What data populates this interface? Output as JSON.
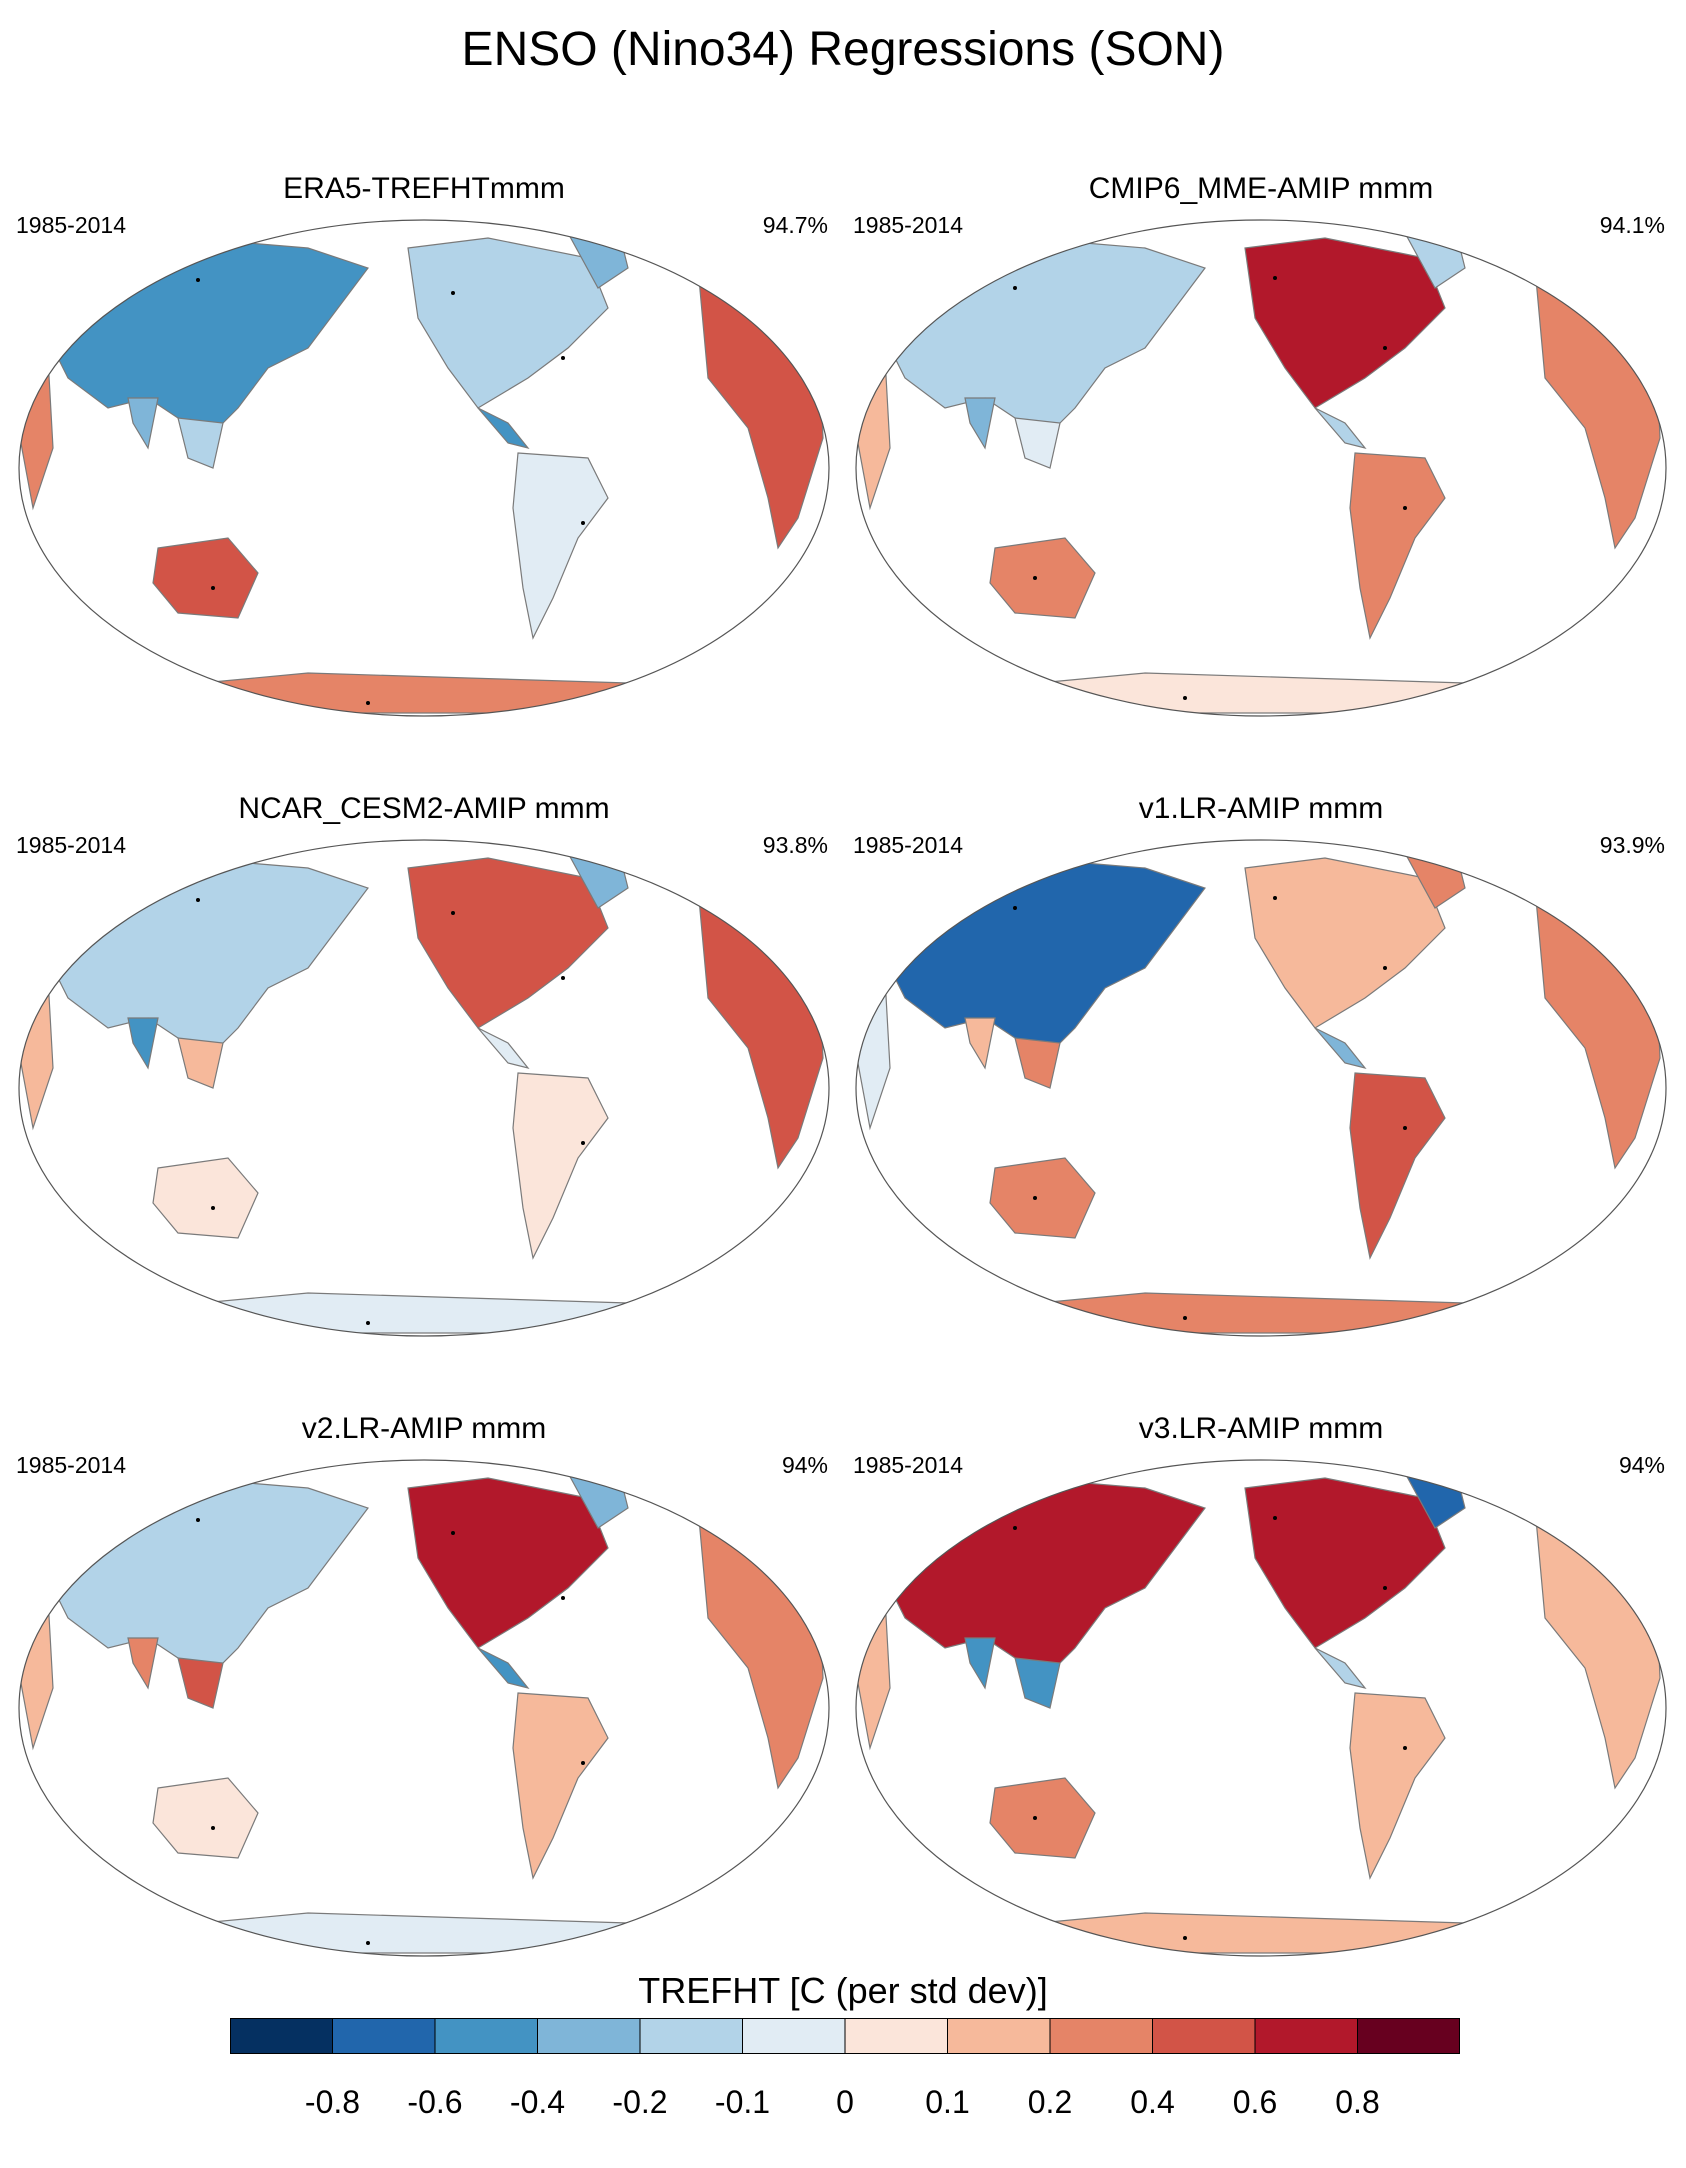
{
  "title": "ENSO (Nino34) Regressions (SON)",
  "panels": [
    {
      "title": "ERA5-TREFHTmmm",
      "period": "1985-2014",
      "pct": "94.7%"
    },
    {
      "title": "CMIP6_MME-AMIP  mmm",
      "period": "1985-2014",
      "pct": "94.1%"
    },
    {
      "title": "NCAR_CESM2-AMIP  mmm",
      "period": "1985-2014",
      "pct": "93.8%"
    },
    {
      "title": "v1.LR-AMIP  mmm",
      "period": "1985-2014",
      "pct": "93.9%"
    },
    {
      "title": "v2.LR-AMIP  mmm",
      "period": "1985-2014",
      "pct": "94%"
    },
    {
      "title": "v3.LR-AMIP  mmm",
      "period": "1985-2014",
      "pct": "94%"
    }
  ],
  "colorbar": {
    "title": "TREFHT [C (per std dev)]",
    "tick_labels": [
      "-0.8",
      "-0.6",
      "-0.4",
      "-0.2",
      "-0.1",
      "0",
      "0.1",
      "0.2",
      "0.4",
      "0.6",
      "0.8"
    ],
    "colors": [
      "#053061",
      "#2166ac",
      "#4393c3",
      "#7fb5d8",
      "#b2d3e8",
      "#e1ecf4",
      "#fbe5da",
      "#f6b99b",
      "#e58467",
      "#d25447",
      "#b2182b",
      "#67001f"
    ]
  }
}
